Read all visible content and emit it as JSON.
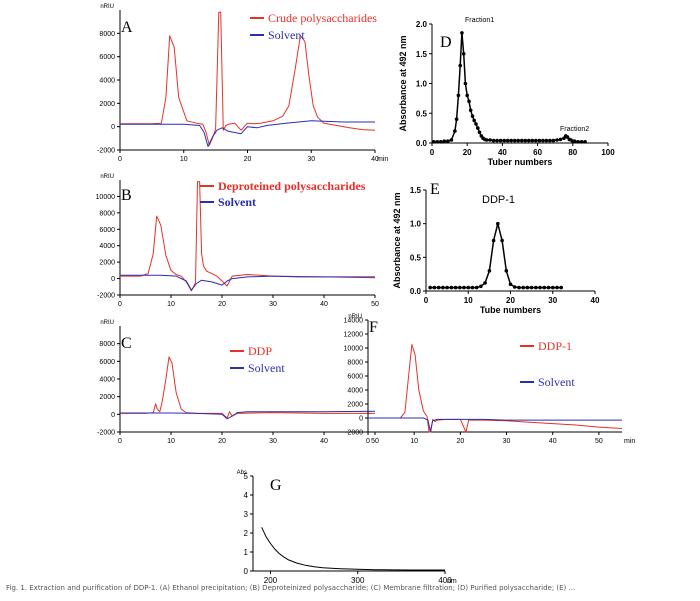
{
  "figure_caption": "Fig. 1. Extraction and purification of DDP-1. (A) Ethanol precipitation; (B) Deproteinized polysaccharide; (C) Membrane filtration; (D) Purified polysaccharide; (E) ...",
  "colors": {
    "red": "#e8302a",
    "blue": "#2a2fb0",
    "black": "#000000"
  },
  "chart_data": [
    {
      "panel": "A",
      "type": "line",
      "xlim": [
        0,
        40
      ],
      "ylim": [
        -2000,
        10000
      ],
      "xticks": [
        "0",
        "10",
        "20",
        "30",
        "40"
      ],
      "x_unit_label": "min",
      "yticks": [
        "-2000",
        "0",
        "2000",
        "4000",
        "6000",
        "8000"
      ],
      "y_unit_label": "nRIU",
      "series": [
        {
          "name": "Crude polysaccharides",
          "color": "red",
          "x": [
            0,
            5,
            6.5,
            7.2,
            7.8,
            8.5,
            9.2,
            10.5,
            12,
            13,
            13.5,
            14,
            14.5,
            15,
            15.5,
            15.8,
            16.2,
            16.6,
            17,
            18,
            19,
            20,
            21,
            22,
            24,
            25.5,
            26.5,
            27.5,
            28.3,
            29,
            29.6,
            30.3,
            31,
            32,
            34,
            36,
            38,
            40
          ],
          "y": [
            250,
            250,
            300,
            2500,
            7800,
            6800,
            2500,
            500,
            300,
            200,
            -500,
            -1600,
            -1000,
            -200,
            9800,
            9800,
            -300,
            100,
            200,
            300,
            -300,
            300,
            250,
            300,
            500,
            900,
            1800,
            5000,
            7800,
            7300,
            4500,
            1800,
            800,
            300,
            100,
            -100,
            -250,
            -300
          ]
        },
        {
          "name": "Solvent",
          "color": "blue",
          "x": [
            0,
            10,
            12.5,
            13.2,
            13.8,
            14.5,
            15.2,
            16,
            17,
            19,
            20,
            21.5,
            23,
            26,
            30,
            35,
            40
          ],
          "y": [
            200,
            200,
            100,
            -500,
            -1700,
            -900,
            -300,
            -100,
            -400,
            -600,
            0,
            -100,
            100,
            300,
            500,
            400,
            400
          ]
        }
      ]
    },
    {
      "panel": "B",
      "type": "line",
      "xlim": [
        0,
        50
      ],
      "ylim": [
        -2000,
        12000
      ],
      "xticks": [
        "0",
        "10",
        "20",
        "30",
        "40",
        "50"
      ],
      "yticks": [
        "-2000",
        "0",
        "2000",
        "4000",
        "6000",
        "8000",
        "10000"
      ],
      "y_unit_label": "nRIU",
      "series": [
        {
          "name": "Deproteined polysaccharides",
          "color": "red",
          "x": [
            0,
            4,
            5.5,
            6.5,
            7.2,
            8,
            9,
            10,
            11,
            12,
            13,
            14,
            14.8,
            15.2,
            15.6,
            16,
            16.4,
            17,
            18,
            19,
            20,
            21,
            22,
            25,
            30,
            40,
            50
          ],
          "y": [
            300,
            300,
            600,
            3000,
            7600,
            6500,
            2800,
            1000,
            500,
            300,
            -400,
            -1500,
            -500,
            11800,
            11800,
            3000,
            1500,
            900,
            600,
            300,
            -300,
            -900,
            300,
            500,
            300,
            200,
            100
          ]
        },
        {
          "name": "Solvent",
          "color": "blue",
          "x": [
            0,
            8,
            11,
            13,
            14,
            15,
            16,
            18,
            20,
            21,
            22,
            25,
            30,
            35,
            40,
            50
          ],
          "y": [
            400,
            400,
            300,
            -300,
            -1400,
            -600,
            -200,
            -400,
            -800,
            -300,
            0,
            200,
            300,
            200,
            200,
            200
          ]
        }
      ]
    },
    {
      "panel": "C",
      "type": "line",
      "xlim": [
        0,
        50
      ],
      "ylim": [
        -2000,
        10000
      ],
      "xticks": [
        "0",
        "10",
        "20",
        "30",
        "40",
        "50"
      ],
      "yticks": [
        "-2000",
        "0",
        "2000",
        "4000",
        "6000",
        "8000"
      ],
      "y_unit_label": "nRIU",
      "series": [
        {
          "name": "DDP",
          "color": "red",
          "x": [
            0,
            5,
            6.5,
            7,
            7.3,
            7.8,
            8.3,
            9,
            9.6,
            10.2,
            11,
            12,
            13,
            15,
            20,
            21,
            21.5,
            22,
            23,
            30,
            40,
            50
          ],
          "y": [
            100,
            100,
            200,
            1200,
            600,
            300,
            1500,
            4000,
            6500,
            5800,
            2500,
            600,
            200,
            100,
            100,
            -400,
            300,
            -200,
            100,
            200,
            100,
            100
          ]
        },
        {
          "name": "Solvent",
          "color": "blue",
          "x": [
            0,
            10,
            15,
            20,
            21,
            22,
            23,
            25,
            30,
            35,
            40,
            50
          ],
          "y": [
            150,
            150,
            100,
            0,
            -500,
            -200,
            200,
            300,
            300,
            300,
            300,
            350
          ]
        }
      ]
    },
    {
      "panel": "F",
      "type": "line",
      "xlim": [
        0,
        55
      ],
      "ylim": [
        -2000,
        14000
      ],
      "xticks": [
        "0",
        "10",
        "20",
        "30",
        "40",
        "50"
      ],
      "x_unit_label": "min",
      "yticks": [
        "-2000",
        "0",
        "2000",
        "4000",
        "6000",
        "8000",
        "10000",
        "12000",
        "14000"
      ],
      "y_unit_label": "nRIU",
      "series": [
        {
          "name": "DDP-1",
          "color": "red",
          "x": [
            0,
            7,
            8,
            8.8,
            9.5,
            10.2,
            11,
            12,
            12.8,
            13.2,
            13.6,
            14,
            14.5,
            15,
            17,
            20,
            21.2,
            21.8,
            22.5,
            25,
            30,
            35,
            40,
            45,
            50,
            55
          ],
          "y": [
            0,
            0,
            800,
            6000,
            10500,
            9000,
            4000,
            1000,
            200,
            -2000,
            -2000,
            -200,
            -500,
            -300,
            -200,
            -200,
            -2000,
            -300,
            -300,
            -300,
            -400,
            -600,
            -800,
            -1000,
            -1300,
            -1500
          ]
        },
        {
          "name": "Solvent",
          "color": "blue",
          "x": [
            0,
            12,
            13,
            13.5,
            14,
            15,
            20,
            25,
            30,
            35,
            40,
            45,
            50,
            55
          ],
          "y": [
            0,
            0,
            -300,
            -1900,
            -400,
            -200,
            -200,
            -200,
            -300,
            -300,
            -300,
            -300,
            -300,
            -300
          ]
        }
      ]
    },
    {
      "panel": "D",
      "type": "line",
      "xlim": [
        0,
        100
      ],
      "ylim": [
        0,
        2
      ],
      "xticks": [
        "0",
        "20",
        "40",
        "60",
        "80",
        "100"
      ],
      "yticks": [
        "0.0",
        "0.5",
        "1.0",
        "1.5",
        "2.0"
      ],
      "xlabel": "Tuber numbers",
      "ylabel": "Absorbance at 492 nm",
      "annotations": [
        "Fraction1",
        "Fraction2"
      ],
      "series": [
        {
          "name": "",
          "color": "black",
          "markers": true,
          "x": [
            1,
            3,
            5,
            7,
            9,
            11,
            13,
            14,
            15,
            16,
            17,
            18,
            19,
            20,
            21,
            22,
            23,
            24,
            25,
            26,
            27,
            28,
            29,
            30,
            31,
            33,
            35,
            37,
            39,
            41,
            43,
            45,
            47,
            49,
            51,
            53,
            55,
            57,
            59,
            61,
            63,
            65,
            67,
            69,
            71,
            73,
            75,
            76,
            77,
            78,
            79,
            80,
            81,
            83,
            85,
            87
          ],
          "y": [
            0.02,
            0.02,
            0.02,
            0.03,
            0.03,
            0.05,
            0.2,
            0.4,
            0.8,
            1.3,
            1.85,
            1.5,
            1.0,
            0.8,
            0.7,
            0.55,
            0.45,
            0.38,
            0.32,
            0.25,
            0.18,
            0.12,
            0.08,
            0.06,
            0.05,
            0.05,
            0.04,
            0.04,
            0.04,
            0.04,
            0.04,
            0.04,
            0.04,
            0.04,
            0.04,
            0.04,
            0.04,
            0.04,
            0.04,
            0.04,
            0.04,
            0.04,
            0.04,
            0.04,
            0.05,
            0.06,
            0.08,
            0.12,
            0.1,
            0.06,
            0.05,
            0.03,
            0.03,
            0.02,
            0.02,
            0.02
          ]
        }
      ]
    },
    {
      "panel": "E",
      "type": "line",
      "xlim": [
        0,
        40
      ],
      "ylim": [
        0,
        1.5
      ],
      "xticks": [
        "0",
        "10",
        "20",
        "30",
        "40"
      ],
      "yticks": [
        "0.0",
        "0.5",
        "1.0",
        "1.5"
      ],
      "xlabel": "Tube numbers",
      "ylabel": "Absorbance at 492 nm",
      "annotations": [
        "DDP-1"
      ],
      "series": [
        {
          "name": "",
          "color": "black",
          "markers": true,
          "x": [
            1,
            2,
            3,
            4,
            5,
            6,
            7,
            8,
            9,
            10,
            11,
            12,
            13,
            14,
            15,
            16,
            17,
            18,
            19,
            20,
            21,
            22,
            23,
            24,
            25,
            26,
            27,
            28,
            29,
            30,
            31,
            32
          ],
          "y": [
            0.05,
            0.05,
            0.05,
            0.05,
            0.05,
            0.05,
            0.05,
            0.05,
            0.05,
            0.05,
            0.05,
            0.05,
            0.07,
            0.12,
            0.3,
            0.75,
            1.0,
            0.75,
            0.3,
            0.1,
            0.06,
            0.05,
            0.05,
            0.05,
            0.05,
            0.05,
            0.05,
            0.05,
            0.05,
            0.05,
            0.05,
            0.05
          ]
        }
      ]
    },
    {
      "panel": "G",
      "type": "line",
      "xlim": [
        180,
        400
      ],
      "ylim": [
        0,
        5
      ],
      "xticks": [
        "200",
        "300",
        "400"
      ],
      "x_unit_label": "nm",
      "yticks": [
        "0",
        "1",
        "2",
        "3",
        "4",
        "5"
      ],
      "y_unit_label": "Abs",
      "series": [
        {
          "name": "",
          "color": "black",
          "x": [
            190,
            195,
            200,
            205,
            210,
            215,
            220,
            230,
            240,
            250,
            260,
            280,
            300,
            320,
            340,
            360,
            380,
            400
          ],
          "y": [
            2.3,
            1.8,
            1.45,
            1.15,
            0.92,
            0.75,
            0.6,
            0.42,
            0.3,
            0.22,
            0.17,
            0.12,
            0.09,
            0.07,
            0.06,
            0.05,
            0.05,
            0.05
          ]
        }
      ]
    }
  ]
}
